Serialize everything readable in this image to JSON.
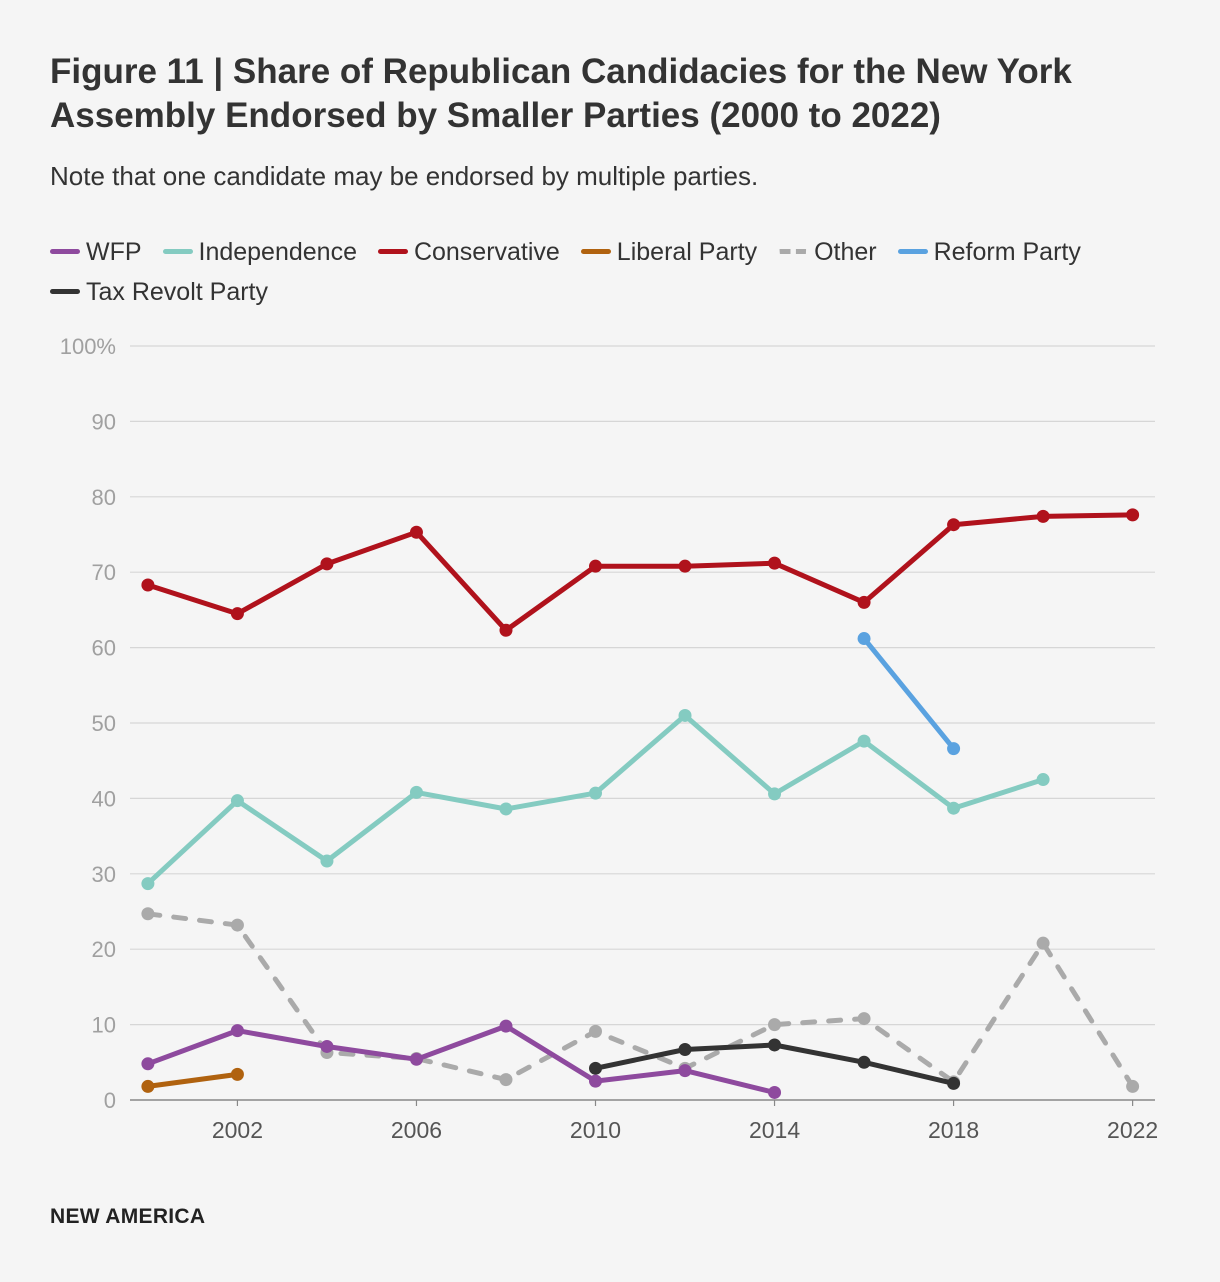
{
  "figure": {
    "title": "Figure 11 | Share of Republican Candidacies for the New York Assembly Endorsed by Smaller Parties (2000 to 2022)",
    "subtitle": "Note that one candidate may be endorsed by multiple parties.",
    "footer": "NEW AMERICA"
  },
  "chart_data": {
    "type": "line",
    "title": "Figure 11 | Share of Republican Candidacies for the New York Assembly Endorsed by Smaller Parties (2000 to 2022)",
    "xlabel": "",
    "ylabel": "",
    "x": [
      2000,
      2002,
      2004,
      2006,
      2008,
      2010,
      2012,
      2014,
      2016,
      2018,
      2020,
      2022
    ],
    "xticks": [
      "2002",
      "2006",
      "2010",
      "2014",
      "2018",
      "2022"
    ],
    "xtick_values": [
      2002,
      2006,
      2010,
      2014,
      2018,
      2022
    ],
    "xlim": [
      1999.6,
      2022.5
    ],
    "ylim": [
      0,
      100
    ],
    "yticks": [
      "0",
      "10",
      "20",
      "30",
      "40",
      "50",
      "60",
      "70",
      "80",
      "90",
      "100%"
    ],
    "ytick_values": [
      0,
      10,
      20,
      30,
      40,
      50,
      60,
      70,
      80,
      90,
      100
    ],
    "grid": true,
    "legend_position": "top",
    "series": [
      {
        "name": "WFP",
        "color": "#8e4a9e",
        "dashed": false,
        "x": [
          2000,
          2002,
          2004,
          2006,
          2008,
          2010,
          2012,
          2014
        ],
        "values": [
          4.8,
          9.2,
          7.1,
          5.4,
          9.8,
          2.5,
          3.9,
          1.0
        ]
      },
      {
        "name": "Independence",
        "color": "#84cbc1",
        "dashed": false,
        "x": [
          2000,
          2002,
          2004,
          2006,
          2008,
          2010,
          2012,
          2014,
          2016,
          2018,
          2020
        ],
        "values": [
          28.7,
          39.7,
          31.7,
          40.8,
          38.6,
          40.7,
          51.0,
          40.6,
          47.6,
          38.7,
          42.5
        ]
      },
      {
        "name": "Conservative",
        "color": "#b0121c",
        "dashed": false,
        "x": [
          2000,
          2002,
          2004,
          2006,
          2008,
          2010,
          2012,
          2014,
          2016,
          2018,
          2020,
          2022
        ],
        "values": [
          68.3,
          64.5,
          71.1,
          75.3,
          62.3,
          70.8,
          70.8,
          71.2,
          66.0,
          76.3,
          77.4,
          77.6
        ]
      },
      {
        "name": "Liberal Party",
        "color": "#b0620f",
        "dashed": false,
        "x": [
          2000,
          2002
        ],
        "values": [
          1.8,
          3.4
        ]
      },
      {
        "name": "Other",
        "color": "#aaaaaa",
        "dashed": true,
        "x": [
          2000,
          2002,
          2004,
          2006,
          2008,
          2010,
          2012,
          2014,
          2016,
          2018,
          2020,
          2022
        ],
        "values": [
          24.7,
          23.2,
          6.3,
          5.5,
          2.7,
          9.1,
          4.2,
          10.0,
          10.8,
          2.4,
          20.8,
          1.8
        ]
      },
      {
        "name": "Reform Party",
        "color": "#5aa2e0",
        "dashed": false,
        "x": [
          2016,
          2018
        ],
        "values": [
          61.2,
          46.6
        ]
      },
      {
        "name": "Tax Revolt Party",
        "color": "#333333",
        "dashed": false,
        "x": [
          2010,
          2012,
          2014,
          2016,
          2018
        ],
        "values": [
          4.2,
          6.7,
          7.3,
          5.0,
          2.2
        ]
      }
    ]
  }
}
